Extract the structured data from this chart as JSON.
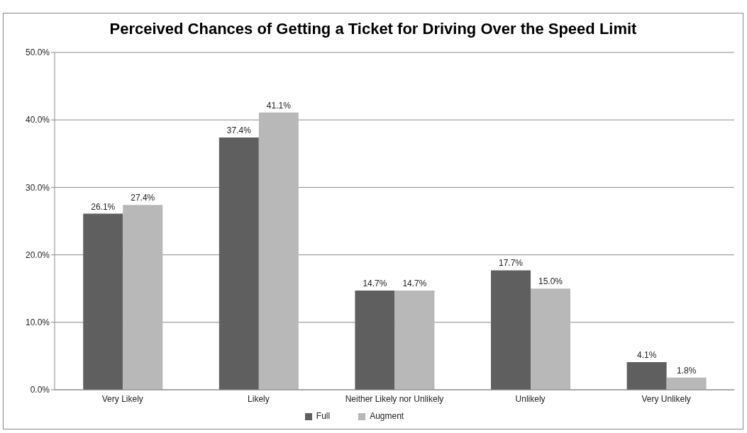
{
  "chart_data": {
    "type": "bar",
    "title": "Perceived Chances of Getting a Ticket for Driving Over the Speed Limit",
    "categories": [
      "Very Likely",
      "Likely",
      "Neither Likely nor Unlikely",
      "Unlikely",
      "Very Unlikely"
    ],
    "series": [
      {
        "name": "Full",
        "color": "#5f5f5f",
        "values": [
          26.1,
          37.4,
          14.7,
          17.7,
          4.1
        ],
        "value_labels": [
          "26.1%",
          "37.4%",
          "14.7%",
          "17.7%",
          "4.1%"
        ]
      },
      {
        "name": "Augment",
        "color": "#b8b8b8",
        "values": [
          27.4,
          41.1,
          14.7,
          15.0,
          1.8
        ],
        "value_labels": [
          "27.4%",
          "41.1%",
          "14.7%",
          "15.0%",
          "1.8%"
        ]
      }
    ],
    "ylim": [
      0,
      50
    ],
    "yticks": [
      {
        "value": 0,
        "label": "0.0%"
      },
      {
        "value": 10,
        "label": "10.0%"
      },
      {
        "value": 20,
        "label": "20.0%"
      },
      {
        "value": 30,
        "label": "30.0%"
      },
      {
        "value": 40,
        "label": "40.0%"
      },
      {
        "value": 50,
        "label": "50.0%"
      }
    ],
    "grid": "y",
    "legend": "bottom"
  }
}
